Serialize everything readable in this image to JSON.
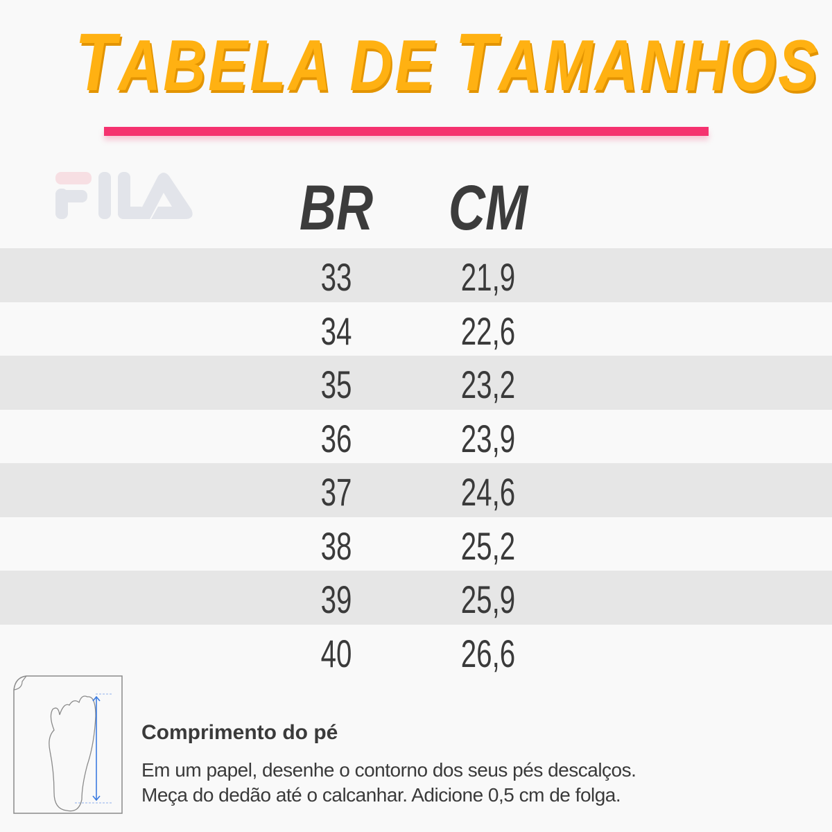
{
  "title": {
    "first": "T",
    "rest": "ABELA DE ",
    "first2": "T",
    "rest2": "AMANHOS"
  },
  "logo_text": "FILA",
  "colors": {
    "title": "#ffb112",
    "underline": "#f5326f",
    "text": "#3a3a3a",
    "stripe": "#e6e6e6",
    "arrow": "#3b7be0"
  },
  "table": {
    "headers": [
      "BR",
      "CM"
    ],
    "rows": [
      [
        "33",
        "21,9"
      ],
      [
        "34",
        "22,6"
      ],
      [
        "35",
        "23,2"
      ],
      [
        "36",
        "23,9"
      ],
      [
        "37",
        "24,6"
      ],
      [
        "38",
        "25,2"
      ],
      [
        "39",
        "25,9"
      ],
      [
        "40",
        "26,6"
      ]
    ]
  },
  "footer": {
    "icon": "foot-on-paper-icon",
    "title": "Comprimento do pé",
    "line1": "Em um papel, desenhe o contorno dos seus pés descalços.",
    "line2": "Meça do dedão até o calcanhar. Adicione 0,5 cm de folga."
  }
}
